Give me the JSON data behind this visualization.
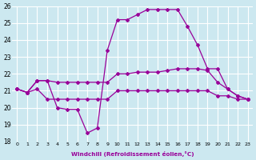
{
  "xlabel": "Windchill (Refroidissement éolien,°C)",
  "x": [
    0,
    1,
    2,
    3,
    4,
    5,
    6,
    7,
    8,
    9,
    10,
    11,
    12,
    13,
    14,
    15,
    16,
    17,
    18,
    19,
    20,
    21,
    22,
    23
  ],
  "line1_flat": [
    21.1,
    20.9,
    21.1,
    20.5,
    20.5,
    20.5,
    20.5,
    20.5,
    20.5,
    20.5,
    21.0,
    21.0,
    21.0,
    21.0,
    21.0,
    21.0,
    21.0,
    21.0,
    21.0,
    21.0,
    20.7,
    20.7,
    20.5,
    20.5
  ],
  "line2_mid": [
    21.1,
    20.9,
    21.6,
    21.6,
    21.5,
    21.5,
    21.5,
    21.5,
    21.5,
    21.5,
    22.0,
    22.0,
    22.1,
    22.1,
    22.1,
    22.2,
    22.3,
    22.3,
    22.3,
    22.2,
    21.5,
    21.1,
    20.7,
    20.5
  ],
  "line3_peak": [
    21.1,
    20.9,
    21.6,
    21.6,
    20.0,
    19.9,
    19.9,
    18.5,
    18.8,
    23.4,
    25.2,
    25.2,
    25.5,
    25.8,
    25.8,
    25.8,
    25.8,
    24.8,
    23.7,
    22.3,
    22.3,
    21.1,
    20.7,
    20.5
  ],
  "line_color": "#990099",
  "bg_color": "#cce8f0",
  "grid_color": "#ffffff",
  "ylim": [
    18,
    26
  ],
  "xlim_min": -0.5,
  "xlim_max": 23.5,
  "yticks": [
    18,
    19,
    20,
    21,
    22,
    23,
    24,
    25,
    26
  ],
  "xticks": [
    0,
    1,
    2,
    3,
    4,
    5,
    6,
    7,
    8,
    9,
    10,
    11,
    12,
    13,
    14,
    15,
    16,
    17,
    18,
    19,
    20,
    21,
    22,
    23
  ],
  "marker": "D",
  "markersize": 2.0,
  "linewidth": 0.9
}
